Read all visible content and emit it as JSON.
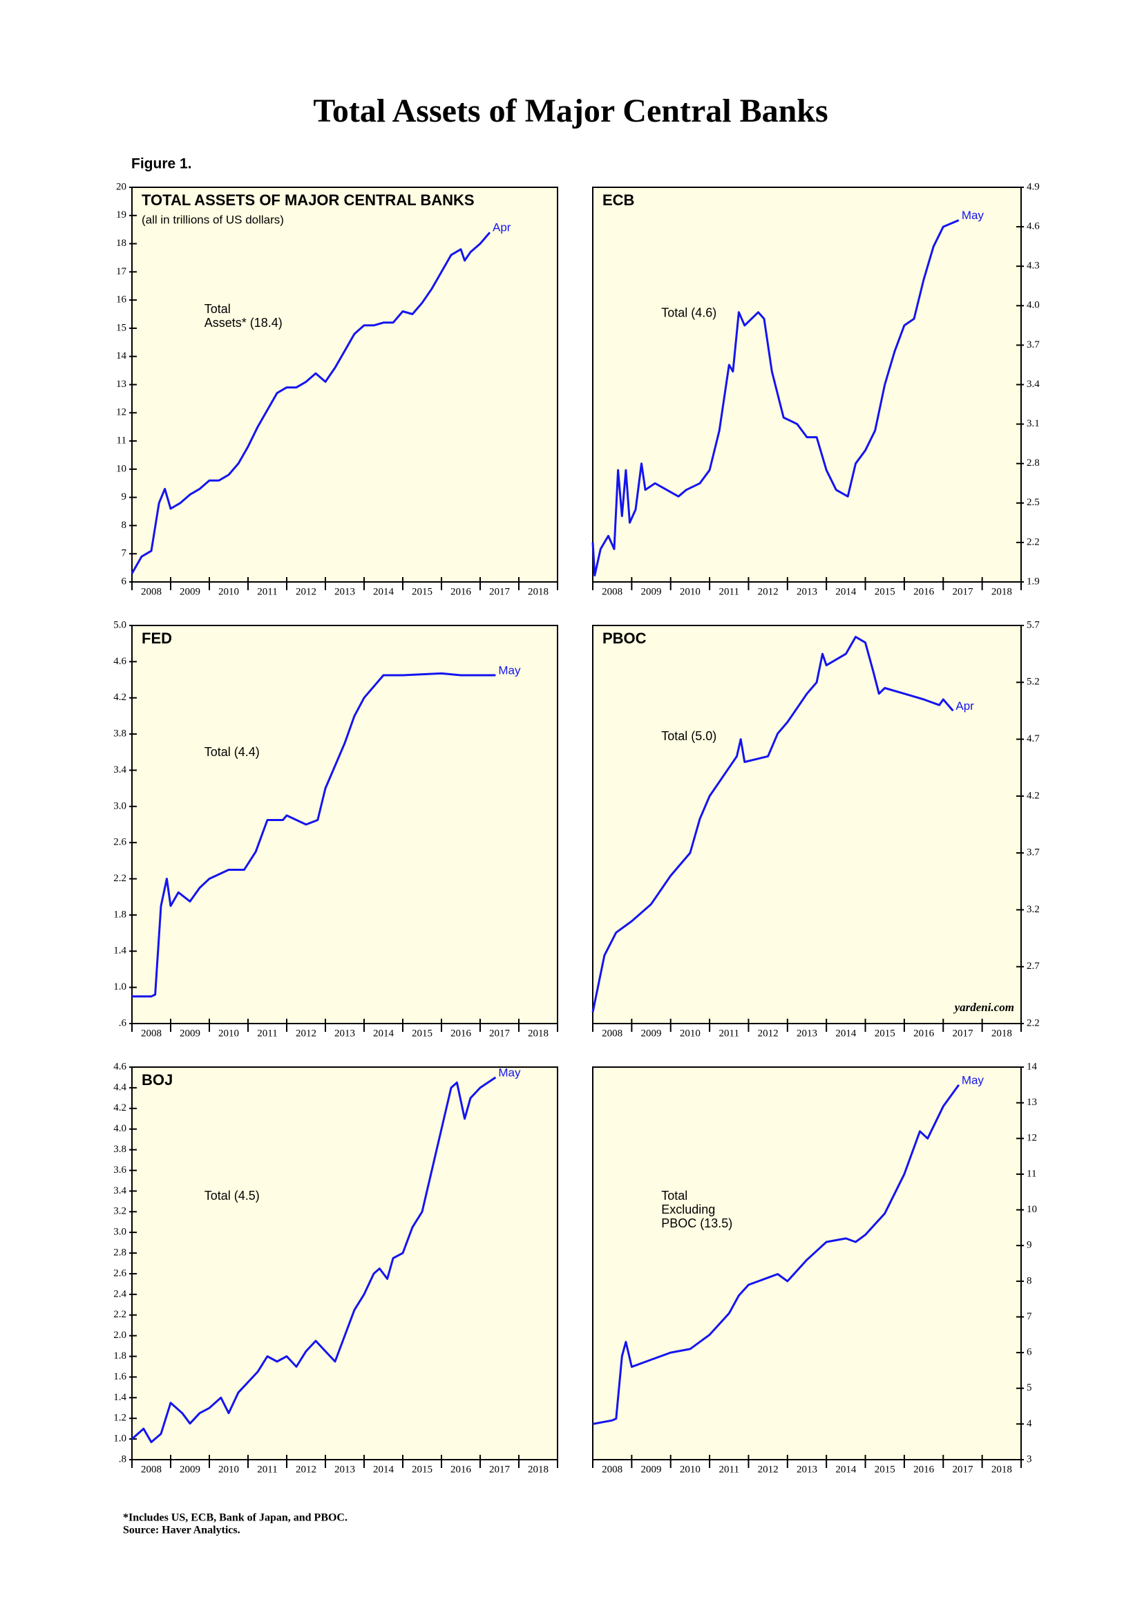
{
  "title": "Total Assets of Major Central Banks",
  "figure_label": "Figure 1.",
  "footnotes": [
    "*Includes US, ECB, Bank of Japan, and PBOC.",
    "Source: Haver Analytics."
  ],
  "chart_data": [
    {
      "type": "line",
      "title": "TOTAL ASSETS OF MAJOR CENTRAL BANKS",
      "subtitle": "(all in trillions of US dollars)",
      "annotation": [
        "Total",
        "Assets* (18.4)"
      ],
      "end_label": "Apr",
      "color": "#1414f0",
      "x": [
        2008.0,
        2008.25,
        2008.5,
        2008.7,
        2008.85,
        2009.0,
        2009.25,
        2009.5,
        2009.75,
        2010.0,
        2010.25,
        2010.5,
        2010.75,
        2011.0,
        2011.25,
        2011.5,
        2011.75,
        2012.0,
        2012.25,
        2012.5,
        2012.75,
        2013.0,
        2013.25,
        2013.5,
        2013.75,
        2014.0,
        2014.25,
        2014.5,
        2014.75,
        2015.0,
        2015.25,
        2015.5,
        2015.75,
        2016.0,
        2016.25,
        2016.5,
        2016.6,
        2016.75,
        2017.0,
        2017.25
      ],
      "values": [
        6.3,
        6.9,
        7.1,
        8.8,
        9.3,
        8.6,
        8.8,
        9.1,
        9.3,
        9.6,
        9.6,
        9.8,
        10.2,
        10.8,
        11.5,
        12.1,
        12.7,
        12.9,
        12.9,
        13.1,
        13.4,
        13.1,
        13.6,
        14.2,
        14.8,
        15.1,
        15.1,
        15.2,
        15.2,
        15.6,
        15.5,
        15.9,
        16.4,
        17.0,
        17.6,
        17.8,
        17.4,
        17.7,
        18.0,
        18.4
      ],
      "xlim": [
        2008,
        2019
      ],
      "xticks": [
        2008,
        2009,
        2010,
        2011,
        2012,
        2013,
        2014,
        2015,
        2016,
        2017,
        2018
      ],
      "ylim": [
        6,
        20
      ],
      "yticks": [
        6,
        7,
        8,
        9,
        10,
        11,
        12,
        13,
        14,
        15,
        16,
        17,
        18,
        19,
        20
      ]
    },
    {
      "type": "line",
      "title": "ECB",
      "annotation": [
        "Total (4.6)"
      ],
      "end_label": "May",
      "color": "#1414f0",
      "x": [
        2008.0,
        2008.05,
        2008.2,
        2008.4,
        2008.55,
        2008.65,
        2008.75,
        2008.85,
        2008.95,
        2009.1,
        2009.25,
        2009.35,
        2009.6,
        2009.9,
        2010.2,
        2010.4,
        2010.75,
        2011.0,
        2011.25,
        2011.5,
        2011.6,
        2011.75,
        2011.9,
        2012.25,
        2012.4,
        2012.6,
        2012.9,
        2013.25,
        2013.5,
        2013.75,
        2014.0,
        2014.25,
        2014.55,
        2014.75,
        2015.0,
        2015.25,
        2015.5,
        2015.75,
        2016.0,
        2016.25,
        2016.5,
        2016.75,
        2017.0,
        2017.4
      ],
      "values": [
        2.2,
        1.95,
        2.15,
        2.25,
        2.15,
        2.75,
        2.4,
        2.75,
        2.35,
        2.45,
        2.8,
        2.6,
        2.65,
        2.6,
        2.55,
        2.6,
        2.65,
        2.75,
        3.05,
        3.55,
        3.5,
        3.95,
        3.85,
        3.95,
        3.9,
        3.5,
        3.15,
        3.1,
        3.0,
        3.0,
        2.75,
        2.6,
        2.55,
        2.8,
        2.9,
        3.05,
        3.4,
        3.65,
        3.85,
        3.9,
        4.2,
        4.45,
        4.6,
        4.65
      ],
      "xlim": [
        2008,
        2019
      ],
      "xticks": [
        2008,
        2009,
        2010,
        2011,
        2012,
        2013,
        2014,
        2015,
        2016,
        2017,
        2018
      ],
      "ylim": [
        1.9,
        4.9
      ],
      "yticks": [
        1.9,
        2.2,
        2.5,
        2.8,
        3.1,
        3.4,
        3.7,
        {
          "value": 4,
          "label": "4.0"
        },
        4.3,
        4.6,
        4.9
      ]
    },
    {
      "type": "line",
      "title": "FED",
      "annotation": [
        "Total (4.4)"
      ],
      "end_label": "May",
      "color": "#1414f0",
      "x": [
        2008.0,
        2008.5,
        2008.6,
        2008.75,
        2008.9,
        2009.0,
        2009.2,
        2009.5,
        2009.75,
        2010.0,
        2010.5,
        2010.9,
        2011.2,
        2011.5,
        2011.9,
        2012.0,
        2012.5,
        2012.8,
        2013.0,
        2013.5,
        2013.75,
        2014.0,
        2014.5,
        2015.0,
        2016.0,
        2016.5,
        2017.4
      ],
      "values": [
        0.9,
        0.9,
        0.92,
        1.9,
        2.2,
        1.9,
        2.05,
        1.95,
        2.1,
        2.2,
        2.3,
        2.3,
        2.5,
        2.85,
        2.85,
        2.9,
        2.8,
        2.85,
        3.2,
        3.7,
        4.0,
        4.2,
        4.45,
        4.45,
        4.47,
        4.45,
        4.45
      ],
      "xlim": [
        2008,
        2019
      ],
      "xticks": [
        2008,
        2009,
        2010,
        2011,
        2012,
        2013,
        2014,
        2015,
        2016,
        2017,
        2018
      ],
      "ylim": [
        0.6,
        5.0
      ],
      "yticks": [
        {
          "value": 0.6,
          "label": ".6"
        },
        {
          "value": 1.0,
          "label": "1.0"
        },
        1.4,
        1.8,
        2.2,
        2.6,
        {
          "value": 3.0,
          "label": "3.0"
        },
        3.4,
        3.8,
        4.2,
        4.6,
        {
          "value": 5.0,
          "label": "5.0"
        }
      ]
    },
    {
      "type": "line",
      "title": "PBOC",
      "annotation": [
        "Total (5.0)"
      ],
      "end_label": "Apr",
      "source_note": "yardeni.com",
      "color": "#1414f0",
      "x": [
        2008.0,
        2008.3,
        2008.6,
        2009.0,
        2009.5,
        2010.0,
        2010.5,
        2010.75,
        2011.0,
        2011.5,
        2011.7,
        2011.8,
        2011.9,
        2012.5,
        2012.75,
        2013.0,
        2013.5,
        2013.75,
        2013.9,
        2014.0,
        2014.5,
        2014.75,
        2015.0,
        2015.2,
        2015.35,
        2015.5,
        2016.0,
        2016.5,
        2016.9,
        2017.0,
        2017.25
      ],
      "values": [
        2.3,
        2.8,
        3.0,
        3.1,
        3.25,
        3.5,
        3.7,
        4.0,
        4.2,
        4.45,
        4.55,
        4.7,
        4.5,
        4.55,
        4.75,
        4.85,
        5.1,
        5.2,
        5.45,
        5.35,
        5.45,
        5.6,
        5.55,
        5.3,
        5.1,
        5.15,
        5.1,
        5.05,
        5.0,
        5.05,
        4.95
      ],
      "xlim": [
        2008,
        2019
      ],
      "xticks": [
        2008,
        2009,
        2010,
        2011,
        2012,
        2013,
        2014,
        2015,
        2016,
        2017,
        2018
      ],
      "ylim": [
        2.2,
        5.7
      ],
      "yticks": [
        2.2,
        2.7,
        3.2,
        3.7,
        4.2,
        4.7,
        5.2,
        5.7
      ]
    },
    {
      "type": "line",
      "title": "BOJ",
      "annotation": [
        "Total (4.5)"
      ],
      "end_label": "May",
      "color": "#1414f0",
      "x": [
        2008.0,
        2008.3,
        2008.5,
        2008.75,
        2009.0,
        2009.3,
        2009.5,
        2009.75,
        2010.0,
        2010.3,
        2010.5,
        2010.75,
        2011.0,
        2011.25,
        2011.5,
        2011.75,
        2012.0,
        2012.25,
        2012.5,
        2012.75,
        2013.0,
        2013.25,
        2013.5,
        2013.75,
        2014.0,
        2014.25,
        2014.4,
        2014.6,
        2014.75,
        2015.0,
        2015.25,
        2015.5,
        2015.75,
        2016.0,
        2016.25,
        2016.4,
        2016.6,
        2016.75,
        2017.0,
        2017.4
      ],
      "values": [
        1.0,
        1.1,
        0.97,
        1.05,
        1.35,
        1.25,
        1.15,
        1.25,
        1.3,
        1.4,
        1.25,
        1.45,
        1.55,
        1.65,
        1.8,
        1.75,
        1.8,
        1.7,
        1.85,
        1.95,
        1.85,
        1.75,
        2.0,
        2.25,
        2.4,
        2.6,
        2.65,
        2.55,
        2.75,
        2.8,
        3.05,
        3.2,
        3.6,
        4.0,
        4.4,
        4.45,
        4.1,
        4.3,
        4.4,
        4.5
      ],
      "xlim": [
        2008,
        2019
      ],
      "xticks": [
        2008,
        2009,
        2010,
        2011,
        2012,
        2013,
        2014,
        2015,
        2016,
        2017,
        2018
      ],
      "ylim": [
        0.8,
        4.6
      ],
      "yticks": [
        {
          "value": 0.8,
          "label": ".8"
        },
        {
          "value": 1.0,
          "label": "1.0"
        },
        1.2,
        1.4,
        1.6,
        1.8,
        {
          "value": 2.0,
          "label": "2.0"
        },
        2.2,
        2.4,
        2.6,
        2.8,
        {
          "value": 3.0,
          "label": "3.0"
        },
        3.2,
        3.4,
        3.6,
        3.8,
        {
          "value": 4.0,
          "label": "4.0"
        },
        4.2,
        4.4,
        4.6
      ]
    },
    {
      "type": "line",
      "annotation": [
        "Total",
        "Excluding",
        "PBOC (13.5)"
      ],
      "end_label": "May",
      "color": "#1414f0",
      "x": [
        2008.0,
        2008.5,
        2008.6,
        2008.75,
        2008.85,
        2009.0,
        2009.5,
        2010.0,
        2010.5,
        2011.0,
        2011.5,
        2011.75,
        2012.0,
        2012.5,
        2012.75,
        2013.0,
        2013.5,
        2014.0,
        2014.5,
        2014.75,
        2015.0,
        2015.5,
        2016.0,
        2016.4,
        2016.6,
        2017.0,
        2017.4
      ],
      "values": [
        4.0,
        4.1,
        4.15,
        5.9,
        6.3,
        5.6,
        5.8,
        6.0,
        6.1,
        6.5,
        7.1,
        7.6,
        7.9,
        8.1,
        8.2,
        8.0,
        8.6,
        9.1,
        9.2,
        9.1,
        9.3,
        9.9,
        11.0,
        12.2,
        12.0,
        12.9,
        13.5
      ],
      "xlim": [
        2008,
        2019
      ],
      "xticks": [
        2008,
        2009,
        2010,
        2011,
        2012,
        2013,
        2014,
        2015,
        2016,
        2017,
        2018
      ],
      "ylim": [
        3,
        14
      ],
      "yticks": [
        3,
        4,
        5,
        6,
        7,
        8,
        9,
        10,
        11,
        12,
        13,
        14
      ]
    }
  ]
}
